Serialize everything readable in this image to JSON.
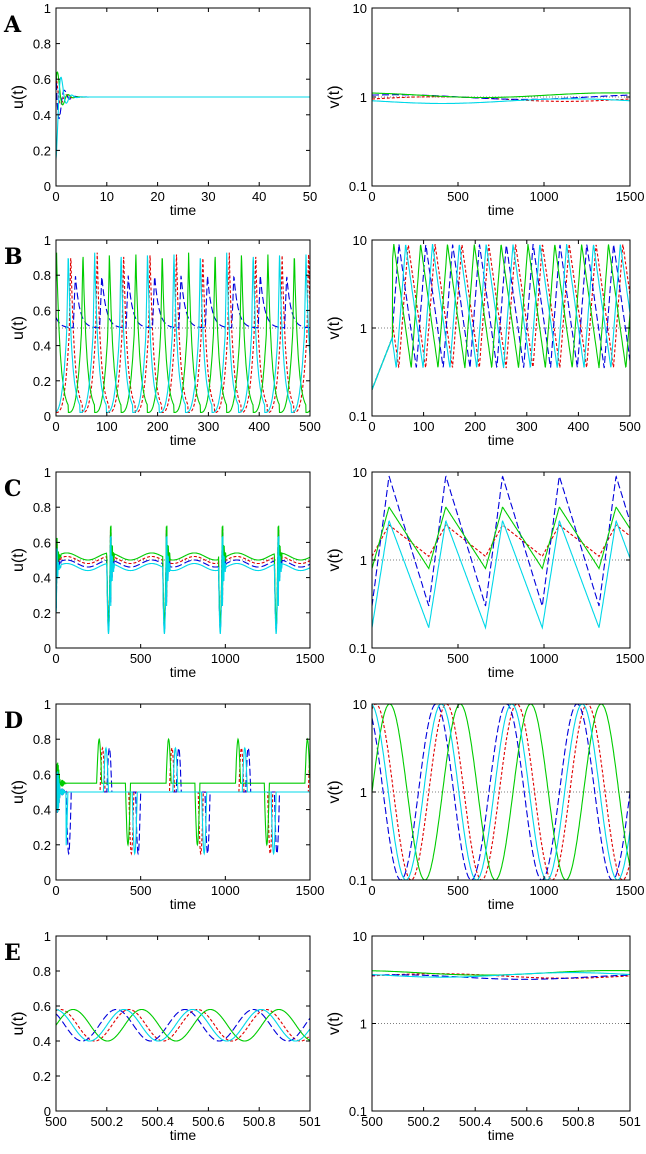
{
  "figure": {
    "panels": [
      {
        "id": "A",
        "label": "A"
      },
      {
        "id": "B",
        "label": "B"
      },
      {
        "id": "C",
        "label": "C"
      },
      {
        "id": "D",
        "label": "D"
      },
      {
        "id": "E",
        "label": "E"
      }
    ],
    "colors": {
      "red": "#e00000",
      "blue": "#0000dd",
      "green": "#00cc00",
      "cyan": "#00d8e8",
      "axis": "#000000",
      "reference": "#555555"
    }
  },
  "chart_data": [
    {
      "panel": "A",
      "type": "line",
      "ylabel": "u(t)",
      "xlabel": "time",
      "xlim": [
        0,
        50
      ],
      "ylim": [
        0,
        1
      ],
      "yscale": "linear",
      "x_ticks": [
        "0",
        "10",
        "20",
        "30",
        "40",
        "50"
      ],
      "y_ticks": [
        "0",
        "0.2",
        "0.4",
        "0.6",
        "0.8",
        "1"
      ],
      "reference_line": 0.5,
      "pattern": "damped",
      "offsets": [
        0.12,
        0.25,
        -0.2,
        0.35
      ],
      "settle": 0.5
    },
    {
      "panel": "A",
      "type": "line",
      "ylabel": "v(t)",
      "xlabel": "time",
      "xlim": [
        0,
        1500
      ],
      "ylim": [
        0.1,
        10
      ],
      "yscale": "log",
      "x_ticks": [
        "0",
        "500",
        "1000",
        "1500"
      ],
      "y_ticks": [
        "0.1",
        "1",
        "10"
      ],
      "reference_line": 1,
      "pattern": "flat",
      "levels": [
        0.95,
        1.0,
        1.05,
        0.9
      ]
    },
    {
      "panel": "B",
      "type": "line",
      "ylabel": "u(t)",
      "xlabel": "time",
      "xlim": [
        0,
        500
      ],
      "ylim": [
        0,
        1
      ],
      "yscale": "linear",
      "x_ticks": [
        "0",
        "100",
        "200",
        "300",
        "400",
        "500"
      ],
      "y_ticks": [
        "0",
        "0.2",
        "0.4",
        "0.6",
        "0.8",
        "1"
      ],
      "reference_line": 0.5,
      "pattern": "relax",
      "period": 52,
      "phases": [
        0,
        18,
        28,
        5
      ],
      "peak": 0.93,
      "base": 0.02
    },
    {
      "panel": "B",
      "type": "line",
      "ylabel": "v(t)",
      "xlabel": "time",
      "xlim": [
        0,
        500
      ],
      "ylim": [
        0.1,
        10
      ],
      "yscale": "log",
      "x_ticks": [
        "0",
        "100",
        "200",
        "300",
        "400",
        "500"
      ],
      "y_ticks": [
        "0.1",
        "1",
        "10"
      ],
      "reference_line": 1,
      "pattern": "sawtooth",
      "period": 52,
      "phases": [
        0,
        18,
        28,
        5
      ],
      "high": 9,
      "low": 0.35
    },
    {
      "panel": "C",
      "type": "line",
      "ylabel": "u(t)",
      "xlabel": "time",
      "xlim": [
        0,
        1500
      ],
      "ylim": [
        0,
        1
      ],
      "yscale": "linear",
      "x_ticks": [
        "0",
        "500",
        "1000",
        "1500"
      ],
      "y_ticks": [
        "0",
        "0.2",
        "0.4",
        "0.6",
        "0.8",
        "1"
      ],
      "reference_line": 0.5,
      "pattern": "spikes",
      "period": 330,
      "start": 300,
      "levels": [
        0.5,
        0.48,
        0.52,
        0.46
      ]
    },
    {
      "panel": "C",
      "type": "line",
      "ylabel": "v(t)",
      "xlabel": "time",
      "xlim": [
        0,
        1500
      ],
      "ylim": [
        0.1,
        10
      ],
      "yscale": "log",
      "x_ticks": [
        "0",
        "500",
        "1000",
        "1500"
      ],
      "y_ticks": [
        "0.1",
        "1",
        "10"
      ],
      "reference_line": 1,
      "pattern": "saw-log",
      "period": 330,
      "phases": [
        0,
        0,
        0,
        0
      ],
      "highs": [
        2.5,
        9,
        4,
        2.8
      ],
      "lows": [
        1.1,
        0.3,
        0.8,
        0.17
      ]
    },
    {
      "panel": "D",
      "type": "line",
      "ylabel": "u(t)",
      "xlabel": "time",
      "xlim": [
        0,
        1500
      ],
      "ylim": [
        0,
        1
      ],
      "yscale": "linear",
      "x_ticks": [
        "0",
        "500",
        "1000",
        "1500"
      ],
      "y_ticks": [
        "0",
        "0.2",
        "0.4",
        "0.6",
        "0.8",
        "1"
      ],
      "reference_line": 0.5,
      "pattern": "spikes-d",
      "period": 410,
      "phases": [
        20,
        60,
        0,
        40
      ],
      "levels": [
        0.5,
        0.5,
        0.55,
        0.5
      ]
    },
    {
      "panel": "D",
      "type": "line",
      "ylabel": "v(t)",
      "xlabel": "time",
      "xlim": [
        0,
        1500
      ],
      "ylim": [
        0.1,
        10
      ],
      "yscale": "log",
      "x_ticks": [
        "0",
        "500",
        "1000",
        "1500"
      ],
      "y_ticks": [
        "0.1",
        "1",
        "10"
      ],
      "reference_line": 1,
      "pattern": "wave-log",
      "period": 410,
      "phases": [
        80,
        140,
        0,
        110
      ]
    },
    {
      "panel": "E",
      "type": "line",
      "ylabel": "u(t)",
      "xlabel": "time",
      "xlim": [
        500,
        501
      ],
      "ylim": [
        0,
        1
      ],
      "yscale": "linear",
      "x_ticks": [
        "500",
        "500.2",
        "500.4",
        "500.6",
        "500.8",
        "501"
      ],
      "y_ticks": [
        "0",
        "0.2",
        "0.4",
        "0.6",
        "0.8",
        "1"
      ],
      "reference_line": null,
      "pattern": "sine",
      "period": 0.27,
      "phases": [
        0.05,
        0.1,
        0.0,
        0.07
      ],
      "mid": 0.49,
      "amp": 0.09
    },
    {
      "panel": "E",
      "type": "line",
      "ylabel": "v(t)",
      "xlabel": "time",
      "xlim": [
        500,
        501
      ],
      "ylim": [
        0.1,
        10
      ],
      "yscale": "log",
      "x_ticks": [
        "500",
        "500.2",
        "500.4",
        "500.6",
        "500.8",
        "501"
      ],
      "y_ticks": [
        "0.1",
        "1",
        "10"
      ],
      "reference_line": 1,
      "pattern": "flat",
      "levels": [
        3.5,
        3.4,
        3.8,
        3.6
      ]
    }
  ]
}
